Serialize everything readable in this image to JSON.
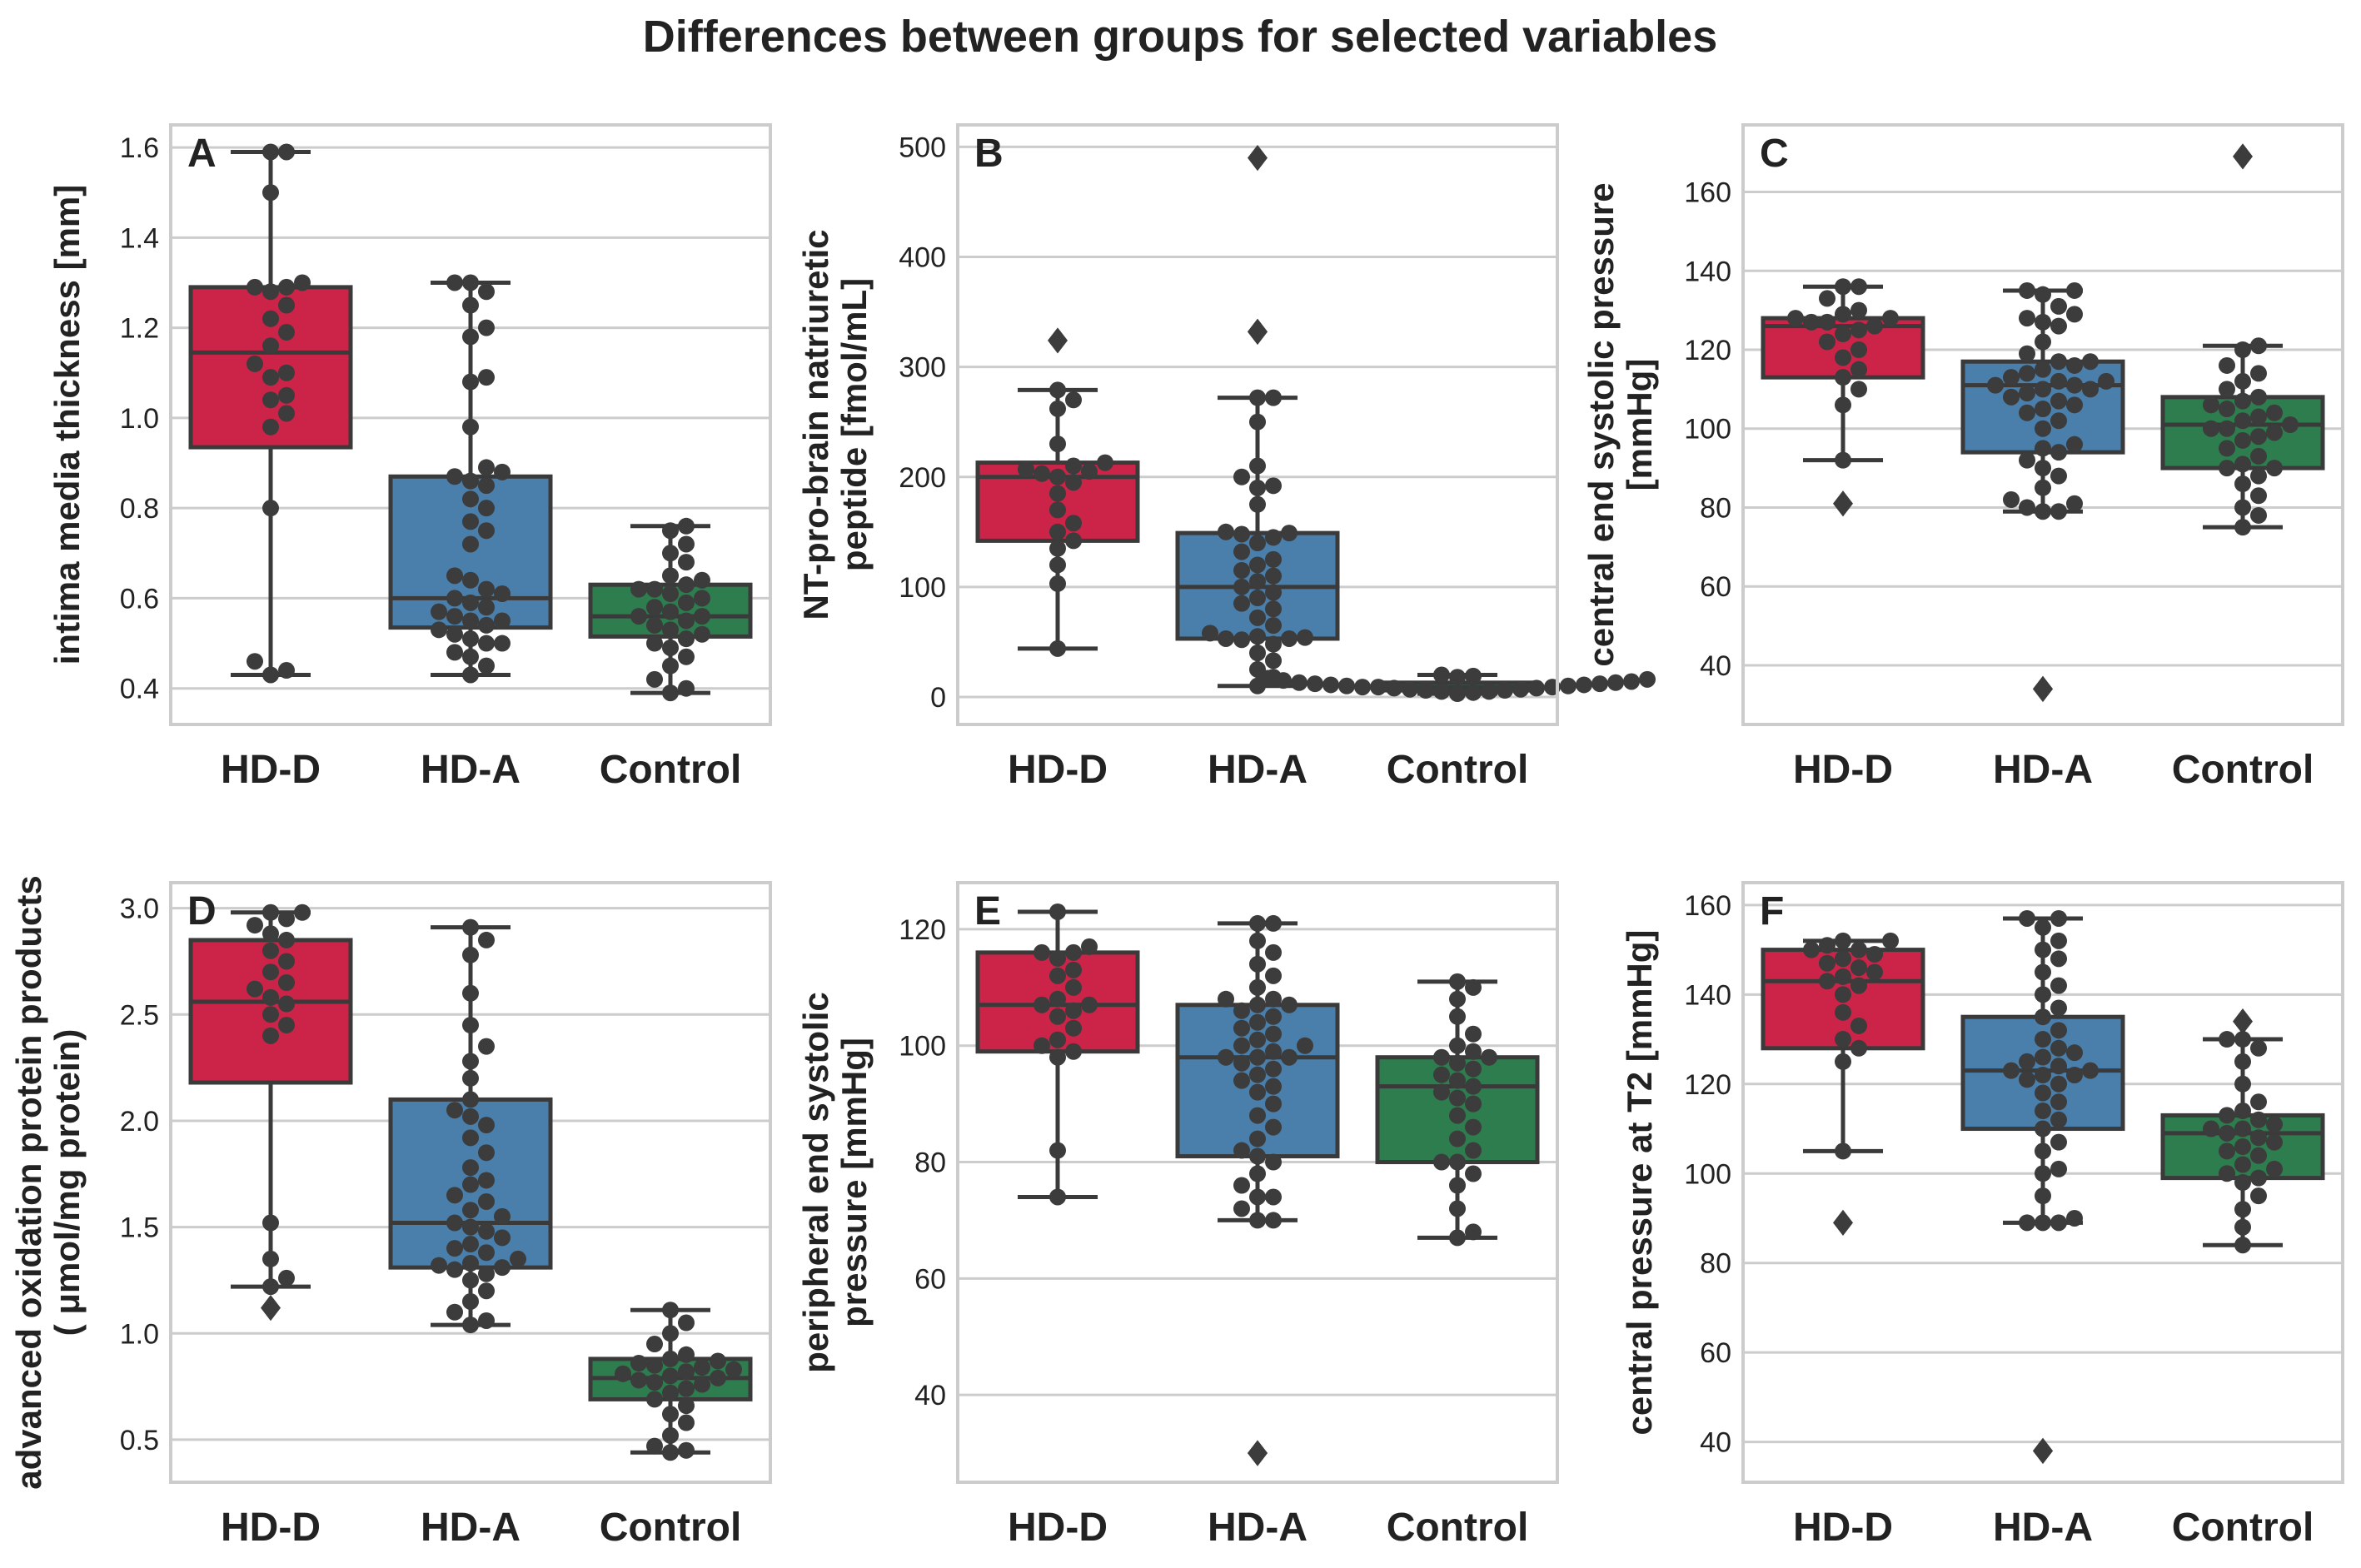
{
  "title": "Differences between groups for selected variables",
  "colors": {
    "HD-D": "#cc2448",
    "HD-A": "#4a7fab",
    "Control": "#2e7d4f"
  },
  "chart_data": [
    {
      "type": "box",
      "panel": "A",
      "title": "",
      "ylabel": [
        "intima media thickness [mm]"
      ],
      "categories": [
        "HD-D",
        "HD-A",
        "Control"
      ],
      "ylim": [
        0.32,
        1.65
      ],
      "yticks": [
        0.4,
        0.6,
        0.8,
        1.0,
        1.2,
        1.4,
        1.6
      ],
      "ytick_labels": [
        "0.4",
        "0.6",
        "0.8",
        "1.0",
        "1.2",
        "1.4",
        "1.6"
      ],
      "boxes": [
        {
          "q1": 0.935,
          "median": 1.145,
          "q3": 1.29,
          "whislo": 0.43,
          "whishi": 1.59,
          "points": [
            0.43,
            0.44,
            0.46,
            0.8,
            0.98,
            1.01,
            1.04,
            1.05,
            1.09,
            1.1,
            1.12,
            1.16,
            1.19,
            1.22,
            1.25,
            1.28,
            1.29,
            1.29,
            1.3,
            1.5,
            1.59,
            1.59
          ]
        },
        {
          "q1": 0.535,
          "median": 0.6,
          "q3": 0.87,
          "whislo": 0.43,
          "whishi": 1.3,
          "points": [
            0.43,
            0.45,
            0.47,
            0.48,
            0.5,
            0.5,
            0.51,
            0.52,
            0.53,
            0.54,
            0.55,
            0.55,
            0.56,
            0.57,
            0.58,
            0.59,
            0.6,
            0.61,
            0.62,
            0.64,
            0.65,
            0.72,
            0.75,
            0.77,
            0.8,
            0.82,
            0.85,
            0.86,
            0.87,
            0.88,
            0.89,
            0.98,
            1.08,
            1.09,
            1.18,
            1.2,
            1.25,
            1.28,
            1.3,
            1.3
          ]
        },
        {
          "q1": 0.515,
          "median": 0.56,
          "q3": 0.63,
          "whislo": 0.39,
          "whishi": 0.76,
          "points": [
            0.39,
            0.4,
            0.42,
            0.45,
            0.47,
            0.49,
            0.5,
            0.51,
            0.52,
            0.53,
            0.54,
            0.55,
            0.56,
            0.56,
            0.57,
            0.58,
            0.59,
            0.6,
            0.61,
            0.62,
            0.62,
            0.63,
            0.64,
            0.65,
            0.68,
            0.7,
            0.72,
            0.75,
            0.76
          ]
        }
      ],
      "fliers": [
        [],
        [],
        []
      ]
    },
    {
      "type": "box",
      "panel": "B",
      "title": "",
      "ylabel": [
        "NT-pro-brain natriuretic",
        "peptide [fmol/mL]"
      ],
      "categories": [
        "HD-D",
        "HD-A",
        "Control"
      ],
      "ylim": [
        -25,
        520
      ],
      "yticks": [
        0,
        100,
        200,
        300,
        400,
        500
      ],
      "ytick_labels": [
        "0",
        "100",
        "200",
        "300",
        "400",
        "500"
      ],
      "boxes": [
        {
          "q1": 142,
          "median": 200,
          "q3": 213,
          "whislo": 44,
          "whishi": 279,
          "points": [
            44,
            103,
            120,
            135,
            142,
            150,
            158,
            170,
            185,
            195,
            200,
            203,
            205,
            207,
            210,
            213,
            230,
            262,
            270,
            279
          ]
        },
        {
          "q1": 53,
          "median": 100,
          "q3": 149,
          "whislo": 10,
          "whishi": 272,
          "points": [
            10,
            18,
            25,
            33,
            40,
            48,
            52,
            53,
            53,
            54,
            55,
            58,
            65,
            72,
            80,
            85,
            90,
            95,
            100,
            105,
            110,
            115,
            120,
            125,
            132,
            140,
            145,
            148,
            149,
            150,
            175,
            190,
            192,
            200,
            210,
            250,
            272,
            272
          ]
        },
        {
          "q1": 6,
          "median": 9,
          "q3": 13,
          "whislo": 3,
          "whishi": 20,
          "points": [
            3,
            4,
            5,
            5,
            6,
            6,
            7,
            7,
            8,
            8,
            9,
            9,
            9,
            10,
            10,
            11,
            11,
            12,
            12,
            13,
            13,
            14,
            15,
            16,
            17,
            18,
            19,
            20
          ]
        }
      ],
      "fliers": [
        [
          324
        ],
        [
          332,
          332,
          490
        ],
        []
      ]
    },
    {
      "type": "box",
      "panel": "C",
      "title": "",
      "ylabel": [
        "central end systolic pressure",
        "[mmHg]"
      ],
      "categories": [
        "HD-D",
        "HD-A",
        "Control"
      ],
      "ylim": [
        25,
        177
      ],
      "yticks": [
        40,
        60,
        80,
        100,
        120,
        140,
        160
      ],
      "ytick_labels": [
        "40",
        "60",
        "80",
        "100",
        "120",
        "140",
        "160"
      ],
      "boxes": [
        {
          "q1": 113,
          "median": 126,
          "q3": 128,
          "whislo": 92,
          "whishi": 136,
          "points": [
            92,
            106,
            110,
            113,
            115,
            118,
            120,
            122,
            124,
            125,
            126,
            127,
            127,
            128,
            128,
            129,
            130,
            133,
            136,
            136
          ]
        },
        {
          "q1": 94,
          "median": 111,
          "q3": 117,
          "whislo": 79,
          "whishi": 135,
          "points": [
            79,
            79,
            80,
            81,
            82,
            85,
            88,
            90,
            92,
            94,
            95,
            96,
            100,
            102,
            104,
            105,
            106,
            107,
            108,
            109,
            110,
            110,
            111,
            111,
            112,
            112,
            113,
            114,
            115,
            116,
            117,
            117,
            119,
            122,
            126,
            127,
            128,
            129,
            131,
            134,
            135,
            135
          ]
        },
        {
          "q1": 90,
          "median": 101,
          "q3": 108,
          "whislo": 75,
          "whishi": 121,
          "points": [
            75,
            78,
            80,
            83,
            86,
            88,
            90,
            90,
            91,
            93,
            95,
            97,
            98,
            99,
            100,
            100,
            101,
            102,
            103,
            104,
            105,
            106,
            107,
            108,
            110,
            112,
            114,
            116,
            120,
            121
          ]
        }
      ],
      "fliers": [
        [
          81
        ],
        [
          34,
          34
        ],
        [
          169
        ]
      ]
    },
    {
      "type": "box",
      "panel": "D",
      "title": "",
      "ylabel": [
        "advanced oxidation protein products",
        "( μmol/mg protein)"
      ],
      "categories": [
        "HD-D",
        "HD-A",
        "Control"
      ],
      "ylim": [
        0.3,
        3.12
      ],
      "yticks": [
        0.5,
        1.0,
        1.5,
        2.0,
        2.5,
        3.0
      ],
      "ytick_labels": [
        "0.5",
        "1.0",
        "1.5",
        "2.0",
        "2.5",
        "3.0"
      ],
      "boxes": [
        {
          "q1": 2.18,
          "median": 2.56,
          "q3": 2.85,
          "whislo": 1.22,
          "whishi": 2.98,
          "points": [
            1.22,
            1.26,
            1.35,
            1.52,
            2.4,
            2.45,
            2.5,
            2.55,
            2.58,
            2.62,
            2.65,
            2.7,
            2.75,
            2.8,
            2.85,
            2.88,
            2.92,
            2.95,
            2.98,
            2.98
          ]
        },
        {
          "q1": 1.31,
          "median": 1.52,
          "q3": 2.1,
          "whislo": 1.04,
          "whishi": 2.91,
          "points": [
            1.04,
            1.06,
            1.1,
            1.15,
            1.2,
            1.25,
            1.28,
            1.3,
            1.31,
            1.32,
            1.33,
            1.35,
            1.38,
            1.4,
            1.42,
            1.45,
            1.48,
            1.5,
            1.52,
            1.55,
            1.58,
            1.62,
            1.65,
            1.7,
            1.72,
            1.78,
            1.85,
            1.92,
            1.98,
            2.02,
            2.05,
            2.1,
            2.2,
            2.28,
            2.35,
            2.45,
            2.6,
            2.78,
            2.85,
            2.91
          ]
        },
        {
          "q1": 0.69,
          "median": 0.79,
          "q3": 0.88,
          "whislo": 0.44,
          "whishi": 1.11,
          "points": [
            0.44,
            0.45,
            0.47,
            0.52,
            0.58,
            0.62,
            0.66,
            0.69,
            0.72,
            0.74,
            0.76,
            0.77,
            0.78,
            0.79,
            0.8,
            0.81,
            0.82,
            0.83,
            0.84,
            0.85,
            0.86,
            0.87,
            0.88,
            0.9,
            0.95,
            1.0,
            1.05,
            1.11
          ]
        }
      ],
      "fliers": [
        [
          1.12
        ],
        [],
        []
      ]
    },
    {
      "type": "box",
      "panel": "E",
      "title": "",
      "ylabel": [
        "peripheral end systolic",
        "pressure [mmHg]"
      ],
      "categories": [
        "HD-D",
        "HD-A",
        "Control"
      ],
      "ylim": [
        25,
        128
      ],
      "yticks": [
        40,
        60,
        80,
        100,
        120
      ],
      "ytick_labels": [
        "40",
        "60",
        "80",
        "100",
        "120"
      ],
      "boxes": [
        {
          "q1": 99,
          "median": 107,
          "q3": 116,
          "whislo": 74,
          "whishi": 123,
          "points": [
            74,
            82,
            98,
            99,
            100,
            101,
            103,
            105,
            106,
            107,
            107,
            108,
            110,
            112,
            113,
            115,
            116,
            116,
            117,
            123
          ]
        },
        {
          "q1": 81,
          "median": 98,
          "q3": 107,
          "whislo": 70,
          "whishi": 121,
          "points": [
            70,
            70,
            72,
            74,
            74,
            76,
            78,
            80,
            81,
            82,
            84,
            86,
            88,
            90,
            92,
            93,
            94,
            95,
            96,
            97,
            98,
            98,
            98,
            99,
            100,
            100,
            101,
            102,
            103,
            104,
            105,
            106,
            107,
            107,
            108,
            108,
            110,
            112,
            114,
            116,
            118,
            121,
            121
          ]
        },
        {
          "q1": 80,
          "median": 93,
          "q3": 98,
          "whislo": 67,
          "whishi": 111,
          "points": [
            67,
            68,
            72,
            76,
            78,
            80,
            80,
            82,
            84,
            86,
            88,
            90,
            91,
            92,
            93,
            94,
            95,
            96,
            97,
            98,
            98,
            99,
            100,
            102,
            105,
            108,
            110,
            111
          ]
        }
      ],
      "fliers": [
        [],
        [
          30,
          30
        ],
        []
      ]
    },
    {
      "type": "box",
      "panel": "F",
      "title": "",
      "ylabel": [
        "central pressure at T2 [mmHg]"
      ],
      "categories": [
        "HD-D",
        "HD-A",
        "Control"
      ],
      "ylim": [
        31,
        165
      ],
      "yticks": [
        40,
        60,
        80,
        100,
        120,
        140,
        160
      ],
      "ytick_labels": [
        "40",
        "60",
        "80",
        "100",
        "120",
        "140",
        "160"
      ],
      "boxes": [
        {
          "q1": 128,
          "median": 143,
          "q3": 150,
          "whislo": 105,
          "whishi": 152,
          "points": [
            105,
            125,
            128,
            130,
            133,
            136,
            140,
            142,
            143,
            144,
            145,
            146,
            147,
            148,
            149,
            150,
            150,
            151,
            152,
            152
          ]
        },
        {
          "q1": 110,
          "median": 123,
          "q3": 135,
          "whislo": 89,
          "whishi": 157,
          "points": [
            89,
            89,
            89,
            90,
            95,
            100,
            101,
            105,
            107,
            110,
            112,
            114,
            116,
            118,
            120,
            121,
            122,
            122,
            123,
            123,
            124,
            125,
            126,
            127,
            128,
            130,
            132,
            135,
            137,
            140,
            142,
            145,
            148,
            150,
            152,
            155,
            157,
            157
          ]
        },
        {
          "q1": 99,
          "median": 109,
          "q3": 113,
          "whislo": 84,
          "whishi": 130,
          "points": [
            84,
            88,
            92,
            95,
            98,
            99,
            100,
            101,
            102,
            104,
            105,
            106,
            107,
            108,
            109,
            110,
            110,
            111,
            112,
            113,
            114,
            116,
            120,
            125,
            128,
            130,
            130
          ]
        }
      ],
      "fliers": [
        [
          89
        ],
        [
          38,
          38
        ],
        [
          134
        ]
      ]
    }
  ]
}
